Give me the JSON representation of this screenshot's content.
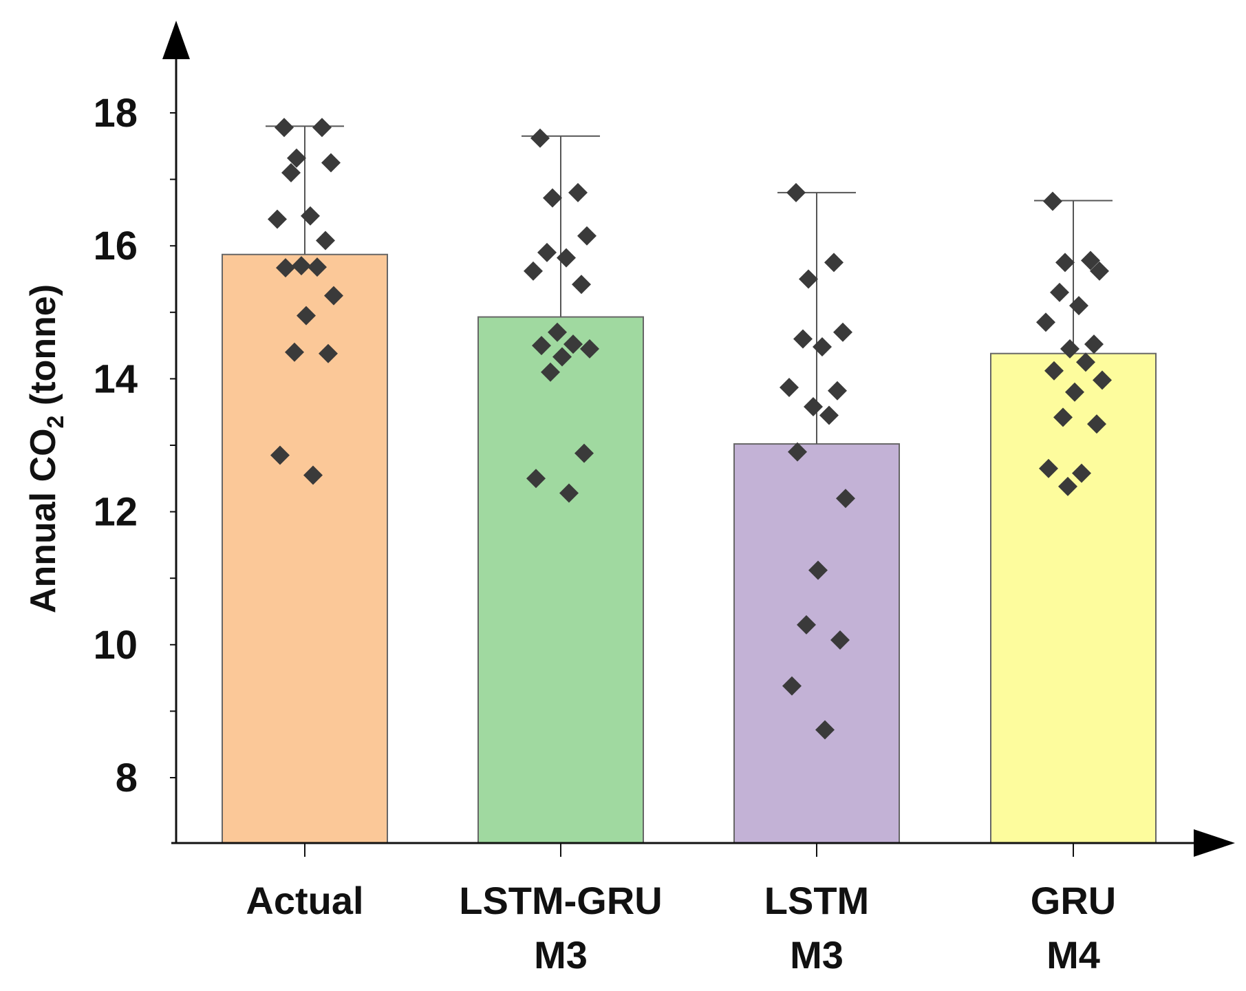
{
  "chart_data": {
    "type": "bar",
    "ylabel": {
      "prefix": "Annual CO",
      "subscript": "2",
      "suffix": " (tonne)"
    },
    "ylim": [
      7,
      19
    ],
    "yticks": [
      8,
      10,
      12,
      14,
      16,
      18
    ],
    "categories": [
      {
        "line1": "Actual",
        "line2": ""
      },
      {
        "line1": "LSTM-GRU",
        "line2": "M3"
      },
      {
        "line1": "LSTM",
        "line2": "M3"
      },
      {
        "line1": "GRU",
        "line2": "M4"
      }
    ],
    "values": [
      15.87,
      14.93,
      13.02,
      14.38
    ],
    "errorbar_top": [
      17.8,
      17.65,
      16.8,
      16.68
    ],
    "colors": [
      "#FBC898",
      "#A0D9A0",
      "#C3B2D6",
      "#FDFC9D"
    ],
    "point_color": "#3A3A3A",
    "points": [
      [
        17.78,
        17.78,
        17.32,
        17.25,
        17.1,
        16.45,
        16.4,
        16.08,
        15.7,
        15.68,
        15.67,
        15.25,
        14.95,
        14.4,
        14.38,
        12.85,
        12.55
      ],
      [
        17.62,
        16.8,
        16.72,
        16.15,
        15.9,
        15.82,
        15.62,
        15.42,
        14.7,
        14.52,
        14.5,
        14.45,
        14.33,
        14.1,
        12.88,
        12.5,
        12.28
      ],
      [
        16.8,
        15.75,
        15.5,
        14.7,
        14.6,
        14.48,
        13.87,
        13.82,
        13.58,
        13.45,
        12.9,
        12.2,
        11.12,
        10.3,
        10.07,
        9.38,
        8.72
      ],
      [
        16.67,
        15.78,
        15.75,
        15.62,
        15.3,
        15.1,
        14.85,
        14.52,
        14.45,
        14.25,
        14.12,
        13.98,
        13.8,
        13.42,
        13.32,
        12.65,
        12.58,
        12.38
      ]
    ]
  }
}
